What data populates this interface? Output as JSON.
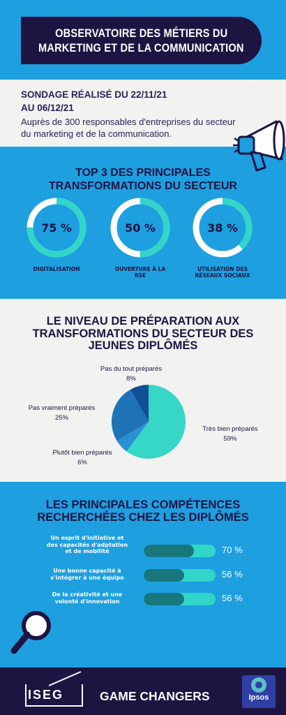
{
  "header": {
    "title_line1": "OBSERVATOIRE DES MÉTIERS DU",
    "title_line2": "MARKETING ET DE LA COMMUNICATION"
  },
  "survey": {
    "title_line1": "SONDAGE RÉALISÉ DU 22/11/21",
    "title_line2": "AU 06/12/21",
    "desc_line1": "Auprès de 300 responsables d'entreprises du secteur",
    "desc_line2": "du marketing et de la communication."
  },
  "top3": {
    "title_line1": "TOP 3 DES PRINCIPALES",
    "title_line2": "TRANSFORMATIONS DU SECTEUR",
    "items": [
      {
        "value": "75 %",
        "fraction": 0.75,
        "label_line1": "DIGITALISATION",
        "label_line2": ""
      },
      {
        "value": "50 %",
        "fraction": 0.5,
        "label_line1": "OUVERTURE À LA",
        "label_line2": "RSE"
      },
      {
        "value": "38 %",
        "fraction": 0.38,
        "label_line1": "UTILISATION DES",
        "label_line2": "RÉSEAUX SOCIAUX"
      }
    ]
  },
  "preparation": {
    "title_line1": "LE NIVEAU DE PRÉPARATION AUX",
    "title_line2": "TRANSFORMATIONS DU SECTEUR DES",
    "title_line3": "JEUNES DIPLÔMÉS"
  },
  "chart_data": {
    "type": "pie",
    "title": "LE NIVEAU DE PRÉPARATION AUX TRANSFORMATIONS DU SECTEUR DES JEUNES DIPLÔMÉS",
    "slices": [
      {
        "name": "Très bien préparés",
        "value": 59,
        "label": "59%",
        "color": "#36d7c6"
      },
      {
        "name": "Plutôt bien préparés",
        "value": 6,
        "label": "6%",
        "color": "#2a8fd6"
      },
      {
        "name": "Pas vraiment préparés",
        "value": 25,
        "label": "25%",
        "color": "#1f73b5"
      },
      {
        "name": "Pas du tout préparés",
        "value": 8,
        "label": "8%",
        "color": "#0f4f93"
      }
    ]
  },
  "skills": {
    "title_line1": "LES PRINCIPALES COMPÉTENCES",
    "title_line2": "RECHERCHÉES CHEZ LES DIPLÔMÉS",
    "items": [
      {
        "label_line1": "Un esprit d'initiative et",
        "label_line2": "des capacités d'adptation",
        "label_line3": "et de mobilité",
        "value": "70 %",
        "fraction": 0.7
      },
      {
        "label_line1": "Une bonne capacité à",
        "label_line2": "s'intégrer à une équipe",
        "label_line3": "",
        "value": "56 %",
        "fraction": 0.56
      },
      {
        "label_line1": "De la créativité et une",
        "label_line2": "volonté d'innovation",
        "label_line3": "",
        "value": "56 %",
        "fraction": 0.56
      }
    ]
  },
  "footer": {
    "iseg": "ISEG",
    "slogan": "GAME CHANGERS",
    "ipsos": "Ipsos"
  },
  "colors": {
    "navy": "#1d1442",
    "blue": "#1e9fe0",
    "teal": "#31d6c8",
    "dark_teal": "#17777d",
    "light": "#f2f2f0"
  }
}
